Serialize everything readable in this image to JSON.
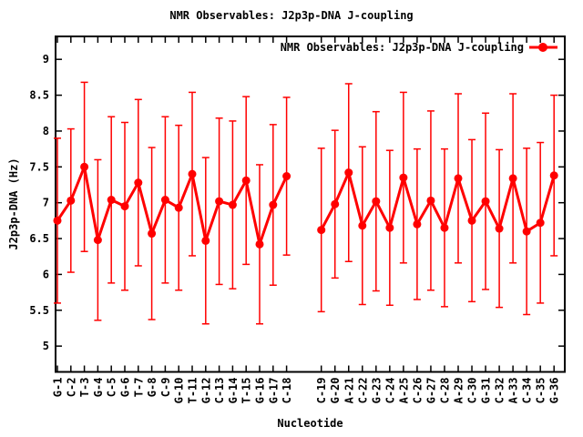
{
  "title": "NMR Observables: J2p3p-DNA J-coupling",
  "colors": {
    "series": "#ff0000",
    "text": "#000000",
    "border": "#000000",
    "background": "#ffffff"
  },
  "chart_data": {
    "type": "line",
    "subtype": "errorbars-with-points",
    "title": "NMR Observables: J2p3p-DNA J-coupling",
    "xlabel": "Nucleotide",
    "ylabel": "J2p3p-DNA (Hz)",
    "legend": {
      "label": "NMR Observables: J2p3p-DNA J-coupling",
      "position": "top-right-inside",
      "marker": "filled-circle-on-line"
    },
    "grid": false,
    "ylim": [
      4.64,
      9.32
    ],
    "yticks": [
      5,
      5.5,
      6,
      6.5,
      7,
      7.5,
      8,
      8.5,
      9
    ],
    "ytick_labels": [
      "5",
      "5.5",
      "6",
      "6.5",
      "7",
      "7.5",
      "8",
      "8.5",
      "9"
    ],
    "gap_after_index": 17,
    "series_color": "#ff0000",
    "categories": [
      "G-1",
      "C-2",
      "T-3",
      "G-4",
      "C-5",
      "G-6",
      "T-7",
      "G-8",
      "C-9",
      "G-10",
      "T-11",
      "G-12",
      "C-13",
      "G-14",
      "T-15",
      "G-16",
      "G-17",
      "C-18",
      "C-19",
      "G-20",
      "A-21",
      "C-22",
      "G-23",
      "C-24",
      "A-25",
      "C-26",
      "G-27",
      "C-28",
      "A-29",
      "C-30",
      "G-31",
      "C-32",
      "A-33",
      "C-34",
      "C-35",
      "G-36"
    ],
    "values": [
      6.75,
      7.03,
      7.5,
      6.48,
      7.04,
      6.95,
      7.28,
      6.57,
      7.04,
      6.93,
      7.4,
      6.47,
      7.02,
      6.97,
      7.31,
      6.42,
      6.97,
      7.37,
      6.62,
      6.98,
      7.42,
      6.68,
      7.02,
      6.65,
      7.35,
      6.7,
      7.03,
      6.65,
      7.34,
      6.75,
      7.02,
      6.64,
      7.34,
      6.6,
      6.72,
      7.38
    ],
    "errors": [
      1.15,
      1.0,
      1.18,
      1.12,
      1.16,
      1.17,
      1.16,
      1.2,
      1.16,
      1.15,
      1.14,
      1.16,
      1.16,
      1.17,
      1.17,
      1.11,
      1.12,
      1.1,
      1.14,
      1.03,
      1.24,
      1.1,
      1.25,
      1.08,
      1.19,
      1.05,
      1.25,
      1.1,
      1.18,
      1.13,
      1.23,
      1.1,
      1.18,
      1.16,
      1.12,
      1.12
    ]
  }
}
